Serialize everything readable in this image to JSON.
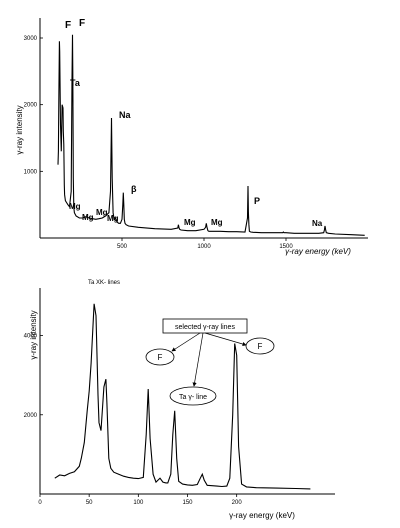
{
  "chart_data": [
    {
      "type": "line",
      "title": "",
      "xlabel": "γ-ray energy (keV)",
      "ylabel": "γ-ray intensity",
      "xlim": [
        0,
        2000
      ],
      "ylim": [
        0,
        3300
      ],
      "x_ticks": [
        "500",
        "1000",
        "1500"
      ],
      "y_ticks": [
        "1000",
        "2000",
        "3000"
      ],
      "grid": false,
      "series": [
        {
          "x": [
            110,
            112,
            115,
            118,
            120,
            125,
            130,
            135,
            140,
            142,
            145,
            148,
            150,
            155,
            160,
            170,
            180,
            190,
            195,
            198,
            200,
            203,
            206,
            210,
            220,
            240,
            260,
            280,
            300,
            320,
            340,
            360,
            380,
            400,
            420,
            430,
            436,
            440,
            446,
            452,
            460,
            470,
            480,
            490,
            500,
            505,
            508,
            511,
            514,
            518,
            525,
            540,
            600,
            700,
            800,
            840,
            844,
            848,
            852,
            860,
            900,
            950,
            1000,
            1010,
            1014,
            1018,
            1024,
            1030,
            1100,
            1150,
            1200,
            1250,
            1265,
            1268,
            1271,
            1274,
            1277,
            1285,
            1300,
            1350,
            1400,
            1450,
            1480,
            1484,
            1488,
            1500,
            1550,
            1600,
            1650,
            1700,
            1730,
            1734,
            1738,
            1742,
            1746,
            1760,
            1800,
            1900,
            1980
          ],
          "y": [
            1100,
            1300,
            2200,
            2950,
            2800,
            1700,
            1300,
            2000,
            1950,
            1600,
            1400,
            800,
            650,
            560,
            540,
            500,
            470,
            700,
            2400,
            3050,
            2500,
            900,
            460,
            380,
            330,
            300,
            300,
            320,
            300,
            290,
            280,
            290,
            300,
            330,
            380,
            700,
            1800,
            900,
            380,
            280,
            300,
            240,
            220,
            220,
            280,
            500,
            680,
            500,
            280,
            220,
            200,
            180,
            160,
            140,
            130,
            150,
            200,
            150,
            130,
            120,
            110,
            110,
            130,
            160,
            220,
            160,
            110,
            100,
            100,
            95,
            95,
            90,
            300,
            780,
            380,
            200,
            100,
            90,
            85,
            80,
            80,
            80,
            80,
            90,
            80,
            80,
            70,
            70,
            70,
            70,
            80,
            120,
            180,
            120,
            80,
            70,
            60,
            50,
            40
          ]
        }
      ],
      "annotations": [
        "F",
        "F",
        "Ta",
        "Na",
        "β",
        "Mg",
        "Mg",
        "Mg",
        "Mg",
        "Mg",
        "Mg",
        "P",
        "Na"
      ],
      "axis_title_partial": "γ-ray energy (keV)"
    },
    {
      "type": "line",
      "title": "",
      "xlabel": "γ-ray energy (keV)",
      "ylabel": "γ-ray intensity",
      "xlim": [
        0,
        300
      ],
      "ylim": [
        0,
        5200
      ],
      "x_ticks": [
        "0",
        "50",
        "100",
        "150",
        "200"
      ],
      "y_ticks": [
        "2000",
        "4000"
      ],
      "grid": false,
      "series": [
        {
          "x": [
            15,
            20,
            25,
            30,
            35,
            40,
            42,
            45,
            48,
            50,
            52,
            55,
            57,
            59,
            60,
            62,
            65,
            67,
            68,
            70,
            72,
            75,
            80,
            85,
            90,
            95,
            100,
            105,
            108,
            110,
            112,
            115,
            118,
            120,
            122,
            125,
            128,
            130,
            133,
            135,
            137,
            139,
            141,
            145,
            150,
            155,
            160,
            163,
            165,
            167,
            170,
            175,
            180,
            185,
            190,
            193,
            196,
            198,
            200,
            202,
            205,
            210,
            220,
            240,
            260,
            275
          ],
          "y": [
            400,
            480,
            460,
            520,
            560,
            700,
            900,
            1300,
            2100,
            2600,
            3300,
            4800,
            4500,
            2500,
            1800,
            1600,
            2700,
            2900,
            2300,
            900,
            650,
            550,
            500,
            450,
            420,
            400,
            390,
            420,
            1500,
            2650,
            1400,
            500,
            300,
            350,
            400,
            300,
            280,
            280,
            500,
            1500,
            2100,
            900,
            320,
            250,
            230,
            220,
            240,
            400,
            500,
            350,
            220,
            210,
            200,
            190,
            200,
            400,
            2000,
            3800,
            3500,
            1200,
            250,
            180,
            160,
            150,
            140,
            130
          ]
        }
      ],
      "annotations": [
        "Ta XK- lines",
        "selected γ-ray lines",
        "F",
        "F",
        "Ta γ- line"
      ]
    }
  ]
}
